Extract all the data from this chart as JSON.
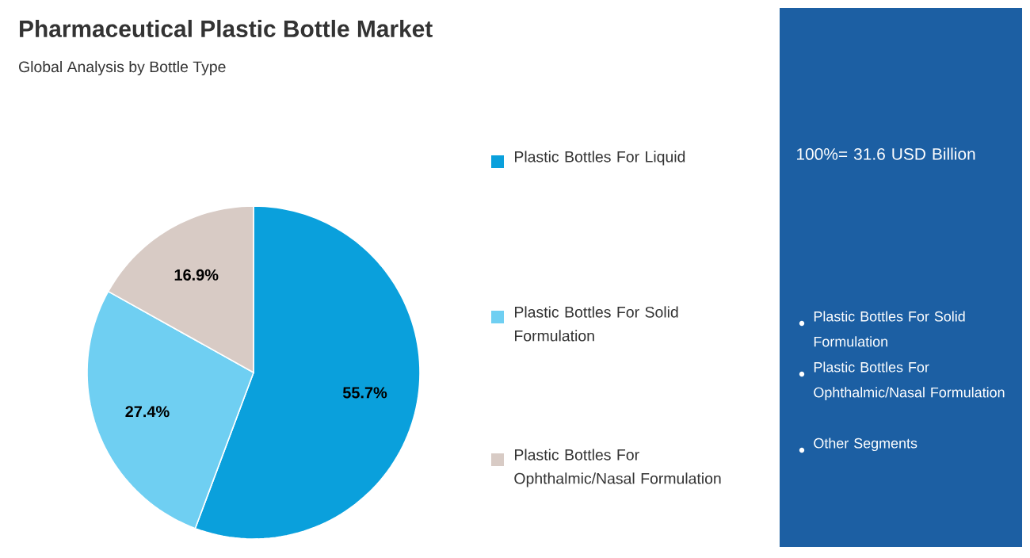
{
  "chart_data": {
    "type": "pie",
    "title": "Pharmaceutical Plastic Bottle Market",
    "subtitle": "Global Analysis by Bottle Type",
    "categories": [
      "Plastic Bottles For Liquid",
      "Plastic Bottles For Solid Formulation",
      "Plastic Bottles For Ophthalmic/Nasal Formulation"
    ],
    "values": [
      55.7,
      27.4,
      16.9
    ],
    "colors": [
      "#0aa0dc",
      "#6fcff2",
      "#d8cbc5"
    ],
    "value_labels": [
      "55.7%",
      "27.4%",
      "16.9%"
    ],
    "legend": "right",
    "annotations": [
      "100%= 31.6 USD Billion",
      "Plastic Bottles For Solid Formulation",
      "Plastic Bottles For Ophthalmic/Nasal Formulation",
      "Other Segments"
    ]
  }
}
